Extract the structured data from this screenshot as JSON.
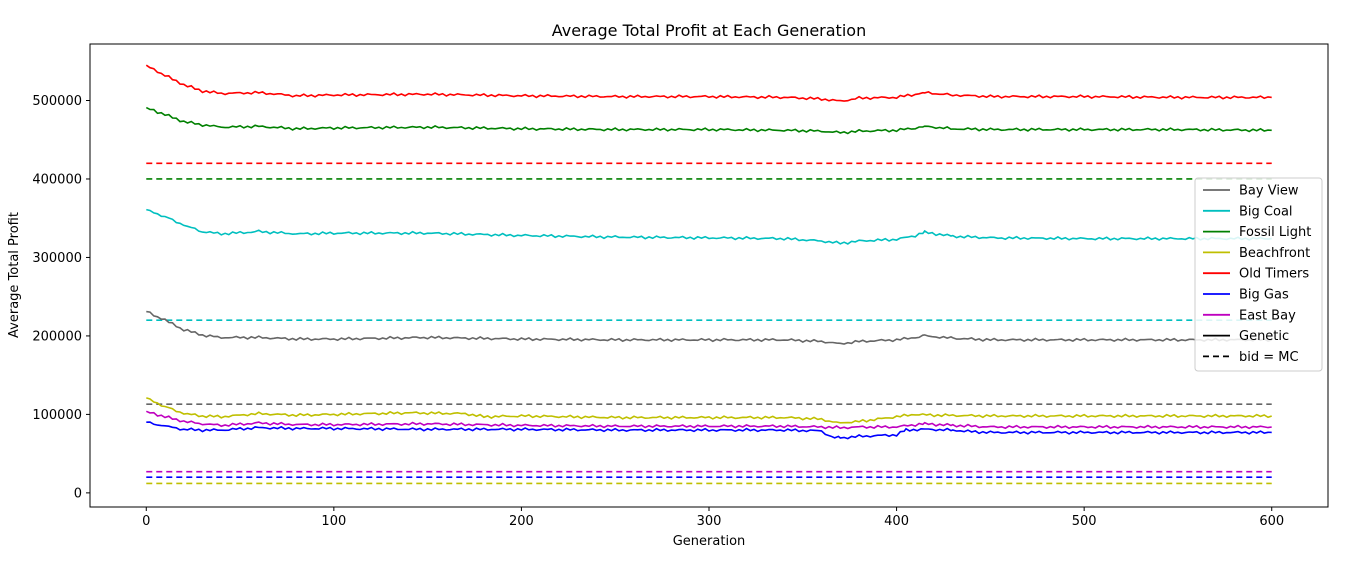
{
  "chart_data": {
    "type": "line",
    "title": "Average Total Profit at Each Generation",
    "xlabel": "Generation",
    "ylabel": "Average Total Profit",
    "xlim": [
      -30,
      630
    ],
    "ylim": [
      -18000,
      572000
    ],
    "xticks": [
      0,
      100,
      200,
      300,
      400,
      500,
      600
    ],
    "yticks": [
      0,
      100000,
      200000,
      300000,
      400000,
      500000
    ],
    "ytick_labels": [
      "0",
      "100000",
      "200000",
      "300000",
      "400000",
      "500000"
    ],
    "grid": false,
    "legend_position": "center-right",
    "legend": [
      {
        "label": "Bay View",
        "color": "#666666",
        "style": "solid"
      },
      {
        "label": "Big Coal",
        "color": "#00bfbf",
        "style": "solid"
      },
      {
        "label": "Fossil Light",
        "color": "#008000",
        "style": "solid"
      },
      {
        "label": "Beachfront",
        "color": "#bfbf00",
        "style": "solid"
      },
      {
        "label": "Old Timers",
        "color": "#ff0000",
        "style": "solid"
      },
      {
        "label": "Big Gas",
        "color": "#0000ff",
        "style": "solid"
      },
      {
        "label": "East Bay",
        "color": "#bf00bf",
        "style": "solid"
      },
      {
        "label": "Genetic",
        "color": "#000000",
        "style": "solid"
      },
      {
        "label": "bid = MC",
        "color": "#000000",
        "style": "dashed"
      }
    ],
    "series": [
      {
        "name": "Old Timers",
        "kind": "genetic",
        "color": "#ff0000",
        "x": [
          0,
          10,
          20,
          30,
          40,
          60,
          80,
          100,
          150,
          200,
          250,
          300,
          340,
          360,
          370,
          380,
          400,
          410,
          415,
          430,
          450,
          500,
          550,
          600
        ],
        "y": [
          545000,
          532000,
          520000,
          512000,
          509000,
          510000,
          506000,
          507000,
          508000,
          506000,
          505000,
          505000,
          504000,
          502000,
          499000,
          503000,
          504000,
          508000,
          510000,
          507000,
          505000,
          505000,
          504000,
          504000
        ]
      },
      {
        "name": "Fossil Light",
        "kind": "genetic",
        "color": "#008000",
        "x": [
          0,
          10,
          20,
          30,
          40,
          60,
          80,
          100,
          150,
          200,
          250,
          300,
          340,
          360,
          370,
          380,
          400,
          410,
          415,
          430,
          450,
          500,
          550,
          600
        ],
        "y": [
          491000,
          482000,
          473000,
          469000,
          466000,
          467000,
          464000,
          465000,
          466000,
          464000,
          463000,
          463000,
          462000,
          461000,
          459000,
          461000,
          462000,
          465000,
          467000,
          464000,
          463000,
          463000,
          463000,
          462000
        ]
      },
      {
        "name": "Big Coal",
        "kind": "genetic",
        "color": "#00bfbf",
        "x": [
          0,
          10,
          20,
          30,
          40,
          60,
          80,
          100,
          150,
          200,
          250,
          300,
          340,
          360,
          370,
          380,
          400,
          410,
          415,
          430,
          450,
          500,
          550,
          600
        ],
        "y": [
          361000,
          352000,
          341000,
          333000,
          330000,
          333000,
          330000,
          331000,
          331000,
          328000,
          326000,
          325000,
          324000,
          321000,
          318000,
          321000,
          323000,
          328000,
          332000,
          327000,
          325000,
          324000,
          324000,
          324000
        ]
      },
      {
        "name": "Bay View",
        "kind": "genetic",
        "color": "#666666",
        "x": [
          0,
          10,
          20,
          30,
          40,
          60,
          80,
          100,
          150,
          200,
          250,
          300,
          340,
          360,
          370,
          380,
          400,
          410,
          415,
          430,
          450,
          500,
          550,
          600
        ],
        "y": [
          231000,
          220000,
          208000,
          201000,
          198000,
          198000,
          196000,
          196000,
          198000,
          196000,
          195000,
          195000,
          195000,
          193000,
          190000,
          193000,
          195000,
          198000,
          200000,
          197000,
          195000,
          195000,
          195000,
          195000
        ]
      },
      {
        "name": "Beachfront",
        "kind": "genetic",
        "color": "#bfbf00",
        "x": [
          0,
          10,
          20,
          30,
          40,
          60,
          80,
          100,
          140,
          170,
          180,
          200,
          250,
          300,
          340,
          360,
          368,
          380,
          400,
          410,
          420,
          450,
          500,
          550,
          600
        ],
        "y": [
          121000,
          110000,
          101000,
          98000,
          97000,
          101000,
          99000,
          100000,
          102000,
          101000,
          97000,
          98000,
          96000,
          96000,
          96000,
          94000,
          89000,
          91000,
          97000,
          100000,
          99000,
          98000,
          98000,
          98000,
          98000
        ]
      },
      {
        "name": "East Bay",
        "kind": "genetic",
        "color": "#bf00bf",
        "x": [
          0,
          10,
          20,
          30,
          40,
          60,
          80,
          100,
          150,
          200,
          250,
          300,
          340,
          360,
          370,
          380,
          400,
          410,
          415,
          430,
          450,
          500,
          550,
          600
        ],
        "y": [
          104000,
          97000,
          91000,
          88000,
          86000,
          89000,
          87000,
          87000,
          88000,
          86000,
          85000,
          85000,
          85000,
          84000,
          83000,
          84000,
          84000,
          87000,
          88000,
          86000,
          84000,
          84000,
          84000,
          84000
        ]
      },
      {
        "name": "Big Gas",
        "kind": "genetic",
        "color": "#0000ff",
        "x": [
          0,
          10,
          20,
          30,
          40,
          60,
          80,
          100,
          150,
          200,
          250,
          300,
          340,
          360,
          365,
          370,
          380,
          400,
          405,
          415,
          430,
          440,
          450,
          500,
          550,
          600
        ],
        "y": [
          90000,
          85000,
          81000,
          80000,
          80000,
          83000,
          82000,
          82000,
          81000,
          81000,
          80000,
          80000,
          80000,
          79000,
          71000,
          70000,
          72000,
          74000,
          80000,
          81000,
          80000,
          78000,
          77000,
          77000,
          77000,
          77000
        ]
      },
      {
        "name": "Old Timers",
        "kind": "bid=MC",
        "color": "#ff0000",
        "x": [
          0,
          600
        ],
        "y": [
          420000,
          420000
        ]
      },
      {
        "name": "Fossil Light",
        "kind": "bid=MC",
        "color": "#008000",
        "x": [
          0,
          600
        ],
        "y": [
          400000,
          400000
        ]
      },
      {
        "name": "Big Coal",
        "kind": "bid=MC",
        "color": "#00bfbf",
        "x": [
          0,
          600
        ],
        "y": [
          220000,
          220000
        ]
      },
      {
        "name": "Bay View",
        "kind": "bid=MC",
        "color": "#666666",
        "x": [
          0,
          600
        ],
        "y": [
          113000,
          113000
        ]
      },
      {
        "name": "East Bay",
        "kind": "bid=MC",
        "color": "#bf00bf",
        "x": [
          0,
          600
        ],
        "y": [
          27000,
          27000
        ]
      },
      {
        "name": "Big Gas",
        "kind": "bid=MC",
        "color": "#0000ff",
        "x": [
          0,
          600
        ],
        "y": [
          20000,
          20000
        ]
      },
      {
        "name": "Beachfront",
        "kind": "bid=MC",
        "color": "#bfbf00",
        "x": [
          0,
          600
        ],
        "y": [
          12000,
          12000
        ]
      }
    ]
  }
}
